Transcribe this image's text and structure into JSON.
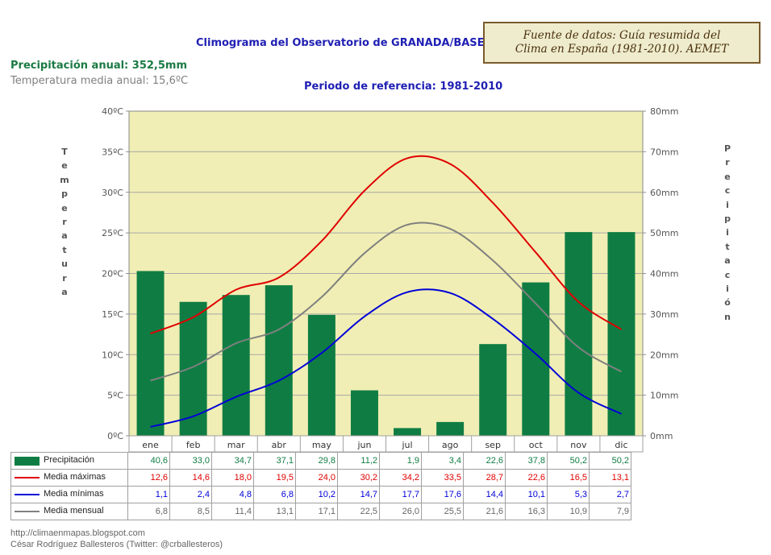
{
  "header": {
    "title": "Climograma del Observatorio de GRANADA/BASE AÉREA",
    "subtitle": "Periodo de referencia: 1981-2010",
    "precip_annual": "Precipitación anual: 352,5mm",
    "temp_annual": "Temperatura media anual: 15,6ºC",
    "source_line1": "Fuente de datos: Guía resumida del",
    "source_line2": "Clima en España (1981-2010). AEMET"
  },
  "axes": {
    "left_label": "Temperatura",
    "right_label": "Precipitación",
    "left_ticks": [
      "0ºC",
      "5ºC",
      "10ºC",
      "15ºC",
      "20ºC",
      "25ºC",
      "30ºC",
      "35ºC",
      "40ºC"
    ],
    "right_ticks": [
      "0mm",
      "10mm",
      "20mm",
      "30mm",
      "40mm",
      "50mm",
      "60mm",
      "70mm",
      "80mm"
    ]
  },
  "colors": {
    "plot_bg": "#f0eeb4",
    "bar": "#0f7d43",
    "max": "#e00000",
    "min": "#0000d8",
    "mean": "#808080",
    "precip_text": "#0f7d43",
    "max_text": "#e00000",
    "min_text": "#0000d8",
    "mean_text": "#666666"
  },
  "chart_data": {
    "type": "bar",
    "title": "Climograma del Observatorio de GRANADA/BASE AÉREA",
    "subtitle": "Periodo de referencia: 1981-2010",
    "categories": [
      "ene",
      "feb",
      "mar",
      "abr",
      "may",
      "jun",
      "jul",
      "ago",
      "sep",
      "oct",
      "nov",
      "dic"
    ],
    "ylabel_left": "Temperatura",
    "ylabel_right": "Precipitación",
    "ylim_left": [
      0,
      40
    ],
    "ylim_right": [
      0,
      80
    ],
    "series": [
      {
        "name": "Precipitación",
        "kind": "bar",
        "axis": "right",
        "values": [
          40.6,
          33.0,
          34.7,
          37.1,
          29.8,
          11.2,
          1.9,
          3.4,
          22.6,
          37.8,
          50.2,
          50.2
        ],
        "labels": [
          "40,6",
          "33,0",
          "34,7",
          "37,1",
          "29,8",
          "11,2",
          "1,9",
          "3,4",
          "22,6",
          "37,8",
          "50,2",
          "50,2"
        ]
      },
      {
        "name": "Media máximas",
        "kind": "line",
        "axis": "left",
        "values": [
          12.6,
          14.6,
          18.0,
          19.5,
          24.0,
          30.2,
          34.2,
          33.5,
          28.7,
          22.6,
          16.5,
          13.1
        ],
        "labels": [
          "12,6",
          "14,6",
          "18,0",
          "19,5",
          "24,0",
          "30,2",
          "34,2",
          "33,5",
          "28,7",
          "22,6",
          "16,5",
          "13,1"
        ]
      },
      {
        "name": "Media mínimas",
        "kind": "line",
        "axis": "left",
        "values": [
          1.1,
          2.4,
          4.8,
          6.8,
          10.2,
          14.7,
          17.7,
          17.6,
          14.4,
          10.1,
          5.3,
          2.7
        ],
        "labels": [
          "1,1",
          "2,4",
          "4,8",
          "6,8",
          "10,2",
          "14,7",
          "17,7",
          "17,6",
          "14,4",
          "10,1",
          "5,3",
          "2,7"
        ]
      },
      {
        "name": "Media mensual",
        "kind": "line",
        "axis": "left",
        "values": [
          6.8,
          8.5,
          11.4,
          13.1,
          17.1,
          22.5,
          26.0,
          25.5,
          21.6,
          16.3,
          10.9,
          7.9
        ],
        "labels": [
          "6,8",
          "8,5",
          "11,4",
          "13,1",
          "17,1",
          "22,5",
          "26,0",
          "25,5",
          "21,6",
          "16,3",
          "10,9",
          "7,9"
        ]
      }
    ]
  },
  "footer": {
    "blog": "http://climaenmapas.blogspot.com",
    "author": "César Rodríguez Ballesteros (Twitter: @crballesteros)"
  }
}
